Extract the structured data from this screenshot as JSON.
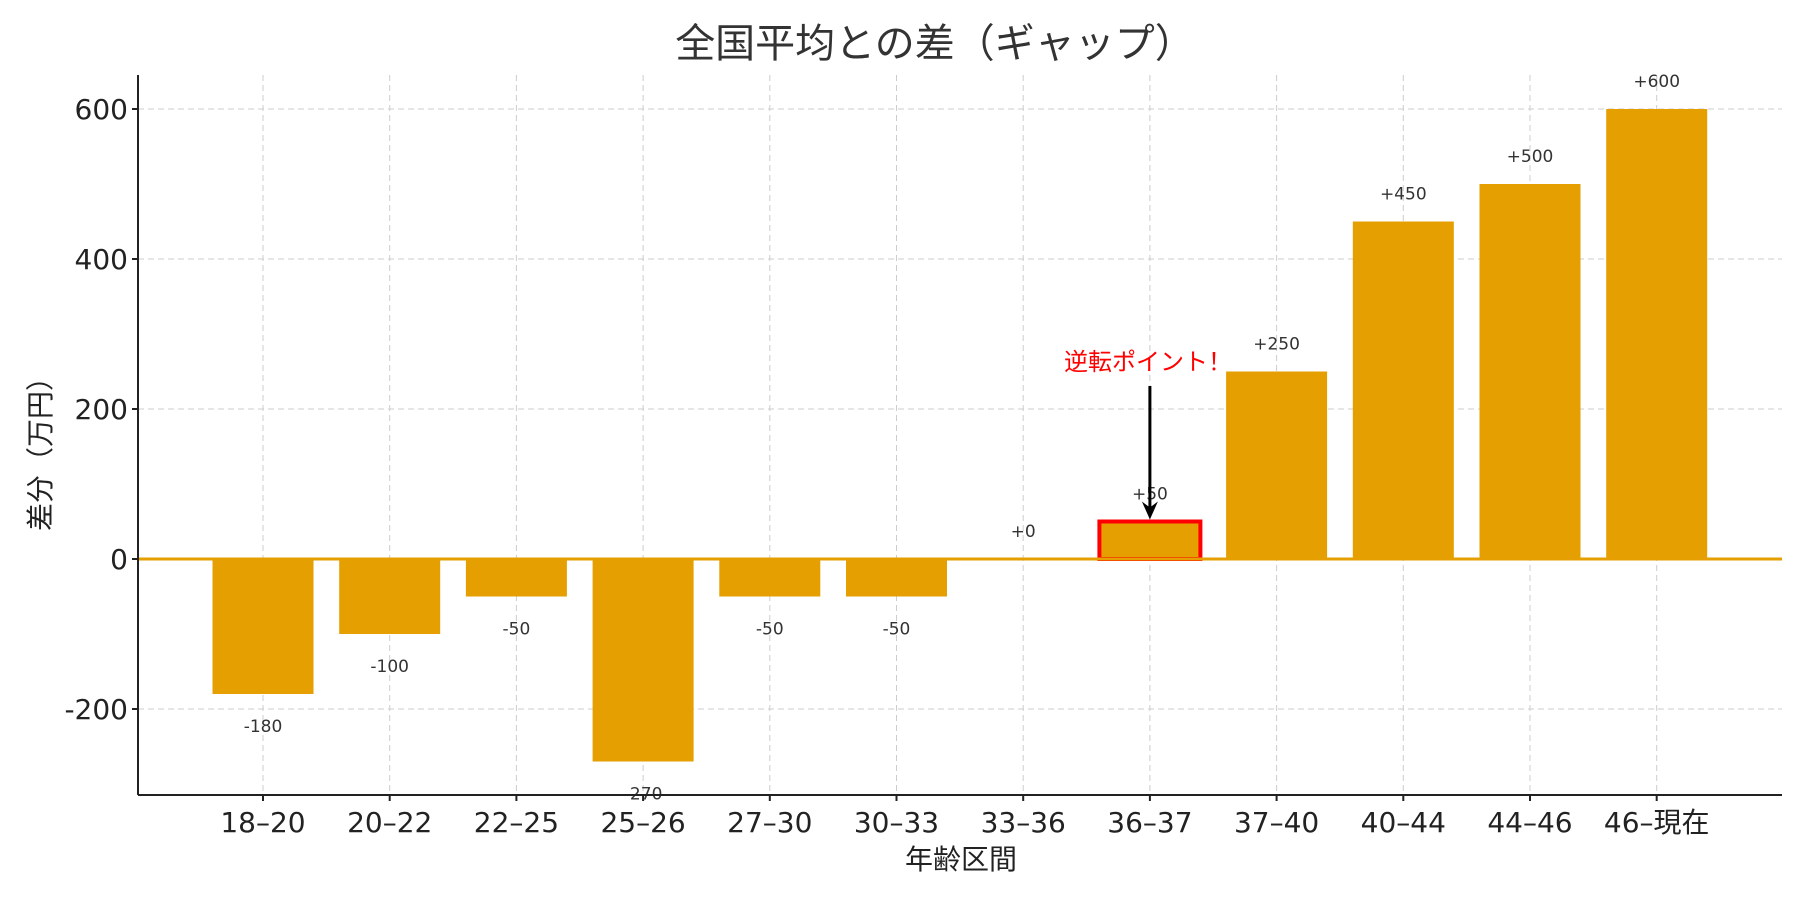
{
  "chart_data": {
    "type": "bar",
    "title": "全国平均との差（ギャップ）",
    "xlabel": "年齢区間",
    "ylabel": "差分（万円）",
    "categories": [
      "18–20",
      "20–22",
      "22–25",
      "25–26",
      "27–30",
      "30–33",
      "33–36",
      "36–37",
      "37–40",
      "40–44",
      "44–46",
      "46–現在"
    ],
    "values": [
      -180,
      -100,
      -50,
      -270,
      -50,
      -50,
      0,
      50,
      250,
      450,
      500,
      600
    ],
    "data_labels": [
      "-180",
      "-100",
      "-50",
      "-270",
      "-50",
      "-50",
      "+0",
      "+50",
      "+250",
      "+450",
      "+500",
      "+600"
    ],
    "ylim": [
      -315,
      645
    ],
    "yticks": [
      -200,
      0,
      200,
      400,
      600
    ],
    "ytick_labels": [
      "-200",
      "0",
      "200",
      "400",
      "600"
    ],
    "grid": true,
    "bar_color": "#E69F00",
    "zero_line_color": "#E69F00",
    "highlight": {
      "category": "36–37",
      "outline_color": "#FF0000"
    },
    "annotation": {
      "text": "逆転ポイント！",
      "target_category": "36–37",
      "target_value": 50,
      "text_color": "#FF0000",
      "arrow_color": "#000000"
    }
  }
}
